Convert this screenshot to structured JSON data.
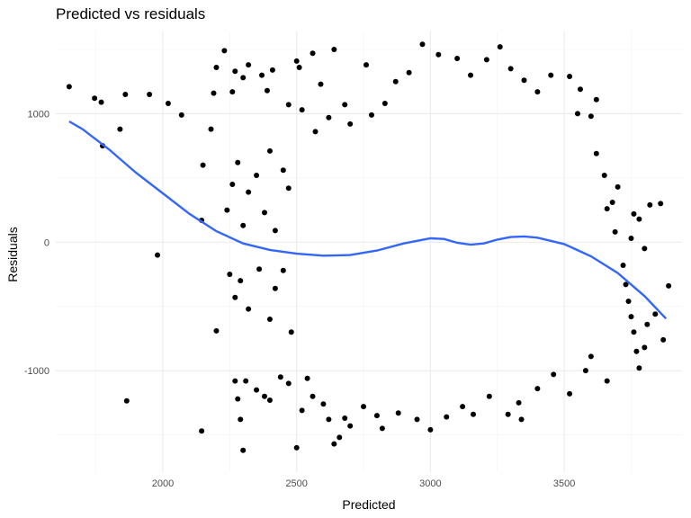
{
  "chart_data": {
    "type": "scatter",
    "title": "Predicted vs residuals",
    "xlabel": "Predicted",
    "ylabel": "Residuals",
    "xlim": [
      1600,
      3940
    ],
    "ylim": [
      -1790,
      1640
    ],
    "x_ticks": [
      2000,
      2500,
      3000,
      3500
    ],
    "x_tick_labels": [
      "2000",
      "2500",
      "3000",
      "3500"
    ],
    "y_ticks": [
      -1000,
      0,
      1000
    ],
    "y_tick_labels": [
      "-1000",
      "0",
      "1000"
    ],
    "grid": true,
    "legend": "none",
    "point_color": "#000000",
    "smooth_color": "#3366FF",
    "smooth_curve": {
      "x": [
        1650,
        1700,
        1800,
        1900,
        2000,
        2100,
        2200,
        2300,
        2400,
        2500,
        2600,
        2700,
        2800,
        2900,
        3000,
        3050,
        3100,
        3150,
        3200,
        3250,
        3300,
        3350,
        3400,
        3500,
        3600,
        3700,
        3800,
        3880
      ],
      "y": [
        940,
        880,
        720,
        540,
        380,
        220,
        85,
        -10,
        -60,
        -90,
        -105,
        -100,
        -65,
        -10,
        30,
        25,
        -5,
        -20,
        -10,
        20,
        40,
        45,
        35,
        -15,
        -110,
        -240,
        -420,
        -595
      ]
    },
    "points": [
      [
        1650,
        1210
      ],
      [
        1745,
        1120
      ],
      [
        1770,
        1090
      ],
      [
        1840,
        880
      ],
      [
        1860,
        1150
      ],
      [
        1950,
        1150
      ],
      [
        2020,
        1080
      ],
      [
        2070,
        990
      ],
      [
        1775,
        750
      ],
      [
        1865,
        -1235
      ],
      [
        1980,
        -100
      ],
      [
        2145,
        170
      ],
      [
        2150,
        600
      ],
      [
        2180,
        880
      ],
      [
        2190,
        1160
      ],
      [
        2200,
        1360
      ],
      [
        2230,
        1490
      ],
      [
        2200,
        -690
      ],
      [
        2145,
        -1470
      ],
      [
        2260,
        1170
      ],
      [
        2270,
        1330
      ],
      [
        2300,
        1280
      ],
      [
        2320,
        1380
      ],
      [
        2370,
        1300
      ],
      [
        2390,
        1180
      ],
      [
        2410,
        1340
      ],
      [
        2500,
        1410
      ],
      [
        2510,
        1360
      ],
      [
        2560,
        1470
      ],
      [
        2640,
        1500
      ],
      [
        2590,
        1230
      ],
      [
        2680,
        1070
      ],
      [
        2760,
        1380
      ],
      [
        2270,
        -1080
      ],
      [
        2280,
        -1220
      ],
      [
        2290,
        -1380
      ],
      [
        2300,
        -1620
      ],
      [
        2310,
        -1080
      ],
      [
        2350,
        -1150
      ],
      [
        2380,
        -1200
      ],
      [
        2400,
        -1230
      ],
      [
        2440,
        -1050
      ],
      [
        2470,
        -1100
      ],
      [
        2500,
        -1600
      ],
      [
        2520,
        -1310
      ],
      [
        2540,
        -1060
      ],
      [
        2560,
        -1200
      ],
      [
        2600,
        -1260
      ],
      [
        2620,
        -1380
      ],
      [
        2640,
        -1570
      ],
      [
        2660,
        -1520
      ],
      [
        2680,
        -1370
      ],
      [
        2700,
        -1430
      ],
      [
        2750,
        -1280
      ],
      [
        2800,
        -1350
      ],
      [
        2820,
        -1450
      ],
      [
        2880,
        -1330
      ],
      [
        2950,
        -1380
      ],
      [
        3000,
        -1460
      ],
      [
        3060,
        -1360
      ],
      [
        3120,
        -1280
      ],
      [
        3160,
        -1340
      ],
      [
        3220,
        -1200
      ],
      [
        3290,
        -1340
      ],
      [
        3330,
        -1250
      ],
      [
        3340,
        -1380
      ],
      [
        3400,
        -1140
      ],
      [
        3460,
        -1030
      ],
      [
        3520,
        -1180
      ],
      [
        3580,
        -1000
      ],
      [
        3600,
        -890
      ],
      [
        3660,
        -1080
      ],
      [
        2240,
        250
      ],
      [
        2260,
        450
      ],
      [
        2280,
        620
      ],
      [
        2300,
        130
      ],
      [
        2320,
        390
      ],
      [
        2350,
        520
      ],
      [
        2380,
        230
      ],
      [
        2400,
        710
      ],
      [
        2420,
        90
      ],
      [
        2450,
        560
      ],
      [
        2470,
        420
      ],
      [
        2250,
        -250
      ],
      [
        2270,
        -430
      ],
      [
        2290,
        -300
      ],
      [
        2320,
        -520
      ],
      [
        2360,
        -210
      ],
      [
        2400,
        -600
      ],
      [
        2420,
        -360
      ],
      [
        2450,
        -220
      ],
      [
        2480,
        -700
      ],
      [
        2470,
        1070
      ],
      [
        2520,
        1030
      ],
      [
        2570,
        860
      ],
      [
        2620,
        970
      ],
      [
        2700,
        920
      ],
      [
        2780,
        990
      ],
      [
        2830,
        1080
      ],
      [
        2870,
        1250
      ],
      [
        2920,
        1320
      ],
      [
        2970,
        1540
      ],
      [
        3030,
        1460
      ],
      [
        3100,
        1430
      ],
      [
        3150,
        1300
      ],
      [
        3210,
        1420
      ],
      [
        3260,
        1520
      ],
      [
        3300,
        1350
      ],
      [
        3350,
        1260
      ],
      [
        3400,
        1170
      ],
      [
        3450,
        1300
      ],
      [
        3520,
        1290
      ],
      [
        3550,
        1000
      ],
      [
        3560,
        1190
      ],
      [
        3600,
        980
      ],
      [
        3620,
        1110
      ],
      [
        3620,
        690
      ],
      [
        3650,
        520
      ],
      [
        3660,
        260
      ],
      [
        3680,
        310
      ],
      [
        3690,
        80
      ],
      [
        3700,
        430
      ],
      [
        3720,
        -180
      ],
      [
        3730,
        -330
      ],
      [
        3740,
        -460
      ],
      [
        3750,
        -580
      ],
      [
        3760,
        -700
      ],
      [
        3770,
        -850
      ],
      [
        3780,
        -980
      ],
      [
        3800,
        -820
      ],
      [
        3810,
        -640
      ],
      [
        3780,
        180
      ],
      [
        3800,
        -50
      ],
      [
        3820,
        290
      ],
      [
        3840,
        -560
      ],
      [
        3860,
        300
      ],
      [
        3870,
        -760
      ],
      [
        3890,
        -340
      ],
      [
        3750,
        30
      ],
      [
        3760,
        220
      ]
    ]
  }
}
